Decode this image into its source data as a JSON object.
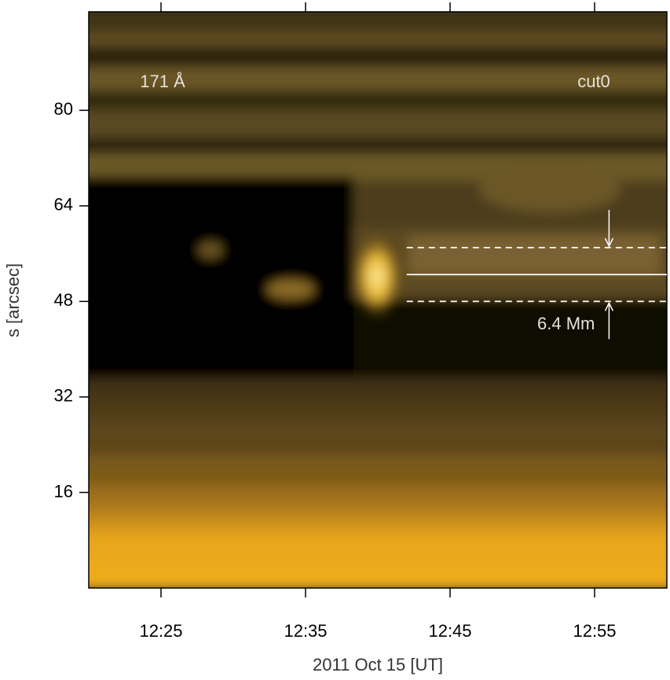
{
  "chart_data": {
    "type": "image",
    "wavelength_label": "171 Å",
    "cut_label": "cut0",
    "width_label": "6.4 Mm",
    "xlabel": "2011 Oct 15 [UT]",
    "ylabel": "s [arcsec]",
    "xlim": [
      "12:20",
      "13:00"
    ],
    "xticks": [
      "12:25",
      "12:35",
      "12:45",
      "12:55"
    ],
    "ylim": [
      0,
      96.5
    ],
    "yticks": [
      16,
      32,
      48,
      64,
      80
    ],
    "guide_lines": {
      "x_start": "12:42",
      "arrow_x": "12:56",
      "series": [
        {
          "y": 57,
          "style": "dashed"
        },
        {
          "y": 52.5,
          "style": "solid"
        },
        {
          "y": 48,
          "style": "dashed"
        }
      ]
    }
  }
}
